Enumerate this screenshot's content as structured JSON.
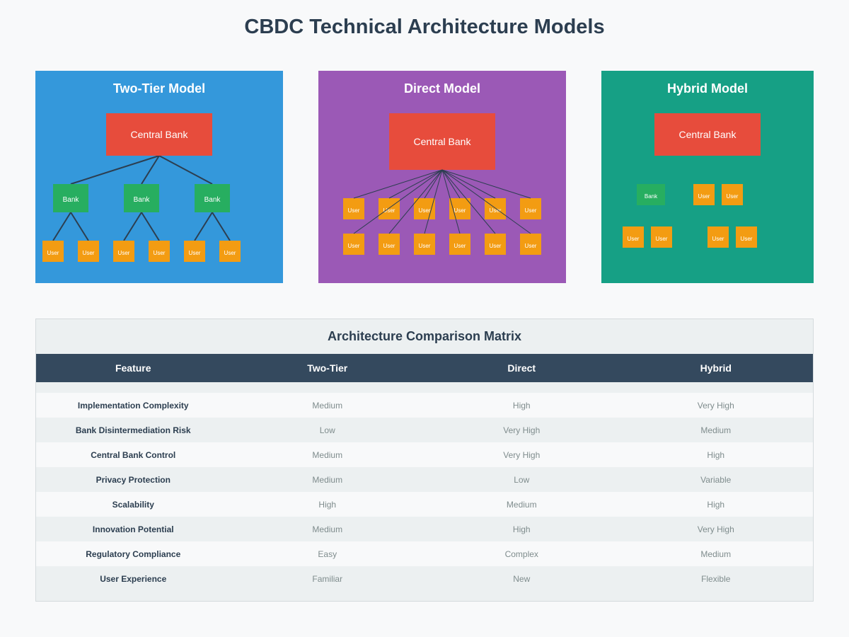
{
  "page": {
    "title": "CBDC Technical Architecture Models"
  },
  "colors": {
    "two_tier_panel": "#3498db",
    "direct_panel": "#9b59b6",
    "hybrid_panel": "#16a085",
    "central_bank": "#e74c3c",
    "bank": "#27ae60",
    "user": "#f39c12",
    "header": "#34495e"
  },
  "models": {
    "two_tier": {
      "title": "Two-Tier Model",
      "central_bank": "Central Bank",
      "banks": [
        "Bank",
        "Bank",
        "Bank"
      ],
      "users": [
        "User",
        "User",
        "User",
        "User",
        "User",
        "User"
      ]
    },
    "direct": {
      "title": "Direct Model",
      "central_bank": "Central Bank",
      "users_row1": [
        "User",
        "User",
        "User",
        "User",
        "User",
        "User"
      ],
      "users_row2": [
        "User",
        "User",
        "User",
        "User",
        "User",
        "User"
      ]
    },
    "hybrid": {
      "title": "Hybrid Model",
      "central_bank": "Central Bank",
      "bank": "Bank",
      "users": [
        "User",
        "User",
        "User",
        "User",
        "User",
        "User"
      ]
    }
  },
  "matrix": {
    "title": "Architecture Comparison Matrix",
    "headers": [
      "Feature",
      "Two-Tier",
      "Direct",
      "Hybrid"
    ],
    "rows": [
      [
        "Implementation Complexity",
        "Medium",
        "High",
        "Very High"
      ],
      [
        "Bank Disintermediation Risk",
        "Low",
        "Very High",
        "Medium"
      ],
      [
        "Central Bank Control",
        "Medium",
        "Very High",
        "High"
      ],
      [
        "Privacy Protection",
        "Medium",
        "Low",
        "Variable"
      ],
      [
        "Scalability",
        "High",
        "Medium",
        "High"
      ],
      [
        "Innovation Potential",
        "Medium",
        "High",
        "Very High"
      ],
      [
        "Regulatory Compliance",
        "Easy",
        "Complex",
        "Medium"
      ],
      [
        "User Experience",
        "Familiar",
        "New",
        "Flexible"
      ]
    ]
  }
}
